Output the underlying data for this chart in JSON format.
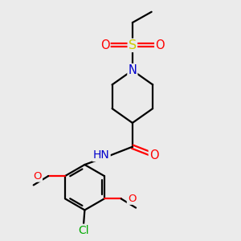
{
  "bg_color": "#ebebeb",
  "bond_color": "#000000",
  "bond_width": 1.6,
  "atom_colors": {
    "C": "#000000",
    "N": "#0000cc",
    "O": "#ff0000",
    "S": "#cccc00",
    "Cl": "#00aa00",
    "H": "#888888"
  },
  "font_size": 9.5,
  "figsize": [
    3.0,
    3.0
  ],
  "dpi": 100
}
